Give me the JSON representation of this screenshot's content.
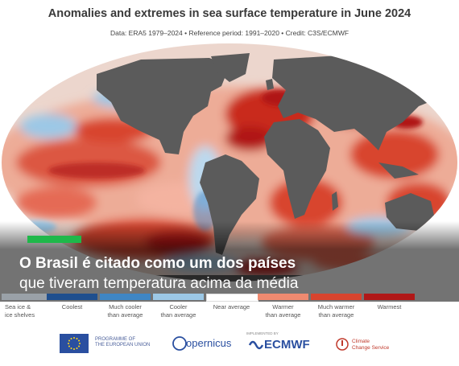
{
  "title": "Anomalies and extremes in sea surface temperature in June 2024",
  "subtitle": "Data: ERA5 1979–2024 • Reference period: 1991–2020 • Credit: C3S/ECMWF",
  "colors": {
    "land": "#5b5b5b",
    "ocean_neutral": "#e9ddd8",
    "warmest": "#b01818",
    "much_warmer": "#d8442e",
    "warmer": "#ef8a70",
    "cooler": "#9cc8e6",
    "much_cooler": "#3f86c4",
    "coolest": "#1f4f8e",
    "sea_ice": "#9aa1a8",
    "accent": "#1fb84a"
  },
  "legend": [
    {
      "label": "Sea ice &\nice shelves",
      "color": "#9aa1a8"
    },
    {
      "label": "Coolest",
      "color": "#1f4f8e"
    },
    {
      "label": "Much cooler\nthan average",
      "color": "#3f86c4"
    },
    {
      "label": "Cooler\nthan average",
      "color": "#9cc8e6"
    },
    {
      "label": "Near average",
      "color": "#ffffff"
    },
    {
      "label": "Warmer\nthan average",
      "color": "#ef8a70"
    },
    {
      "label": "Much warmer\nthan average",
      "color": "#d8442e"
    },
    {
      "label": "Warmest",
      "color": "#b01818"
    }
  ],
  "caption": {
    "headline": "O Brasil é citado como um dos países",
    "subline": "que tiveram temperatura acima da média"
  },
  "logos": {
    "eu_text": "PROGRAMME OF\nTHE EUROPEAN UNION",
    "copernicus": "opernicus",
    "ecmwf": "ECMWF",
    "ecmwf_pre": "IMPLEMENTED BY",
    "c3s_text": "Climate\nChange Service"
  }
}
